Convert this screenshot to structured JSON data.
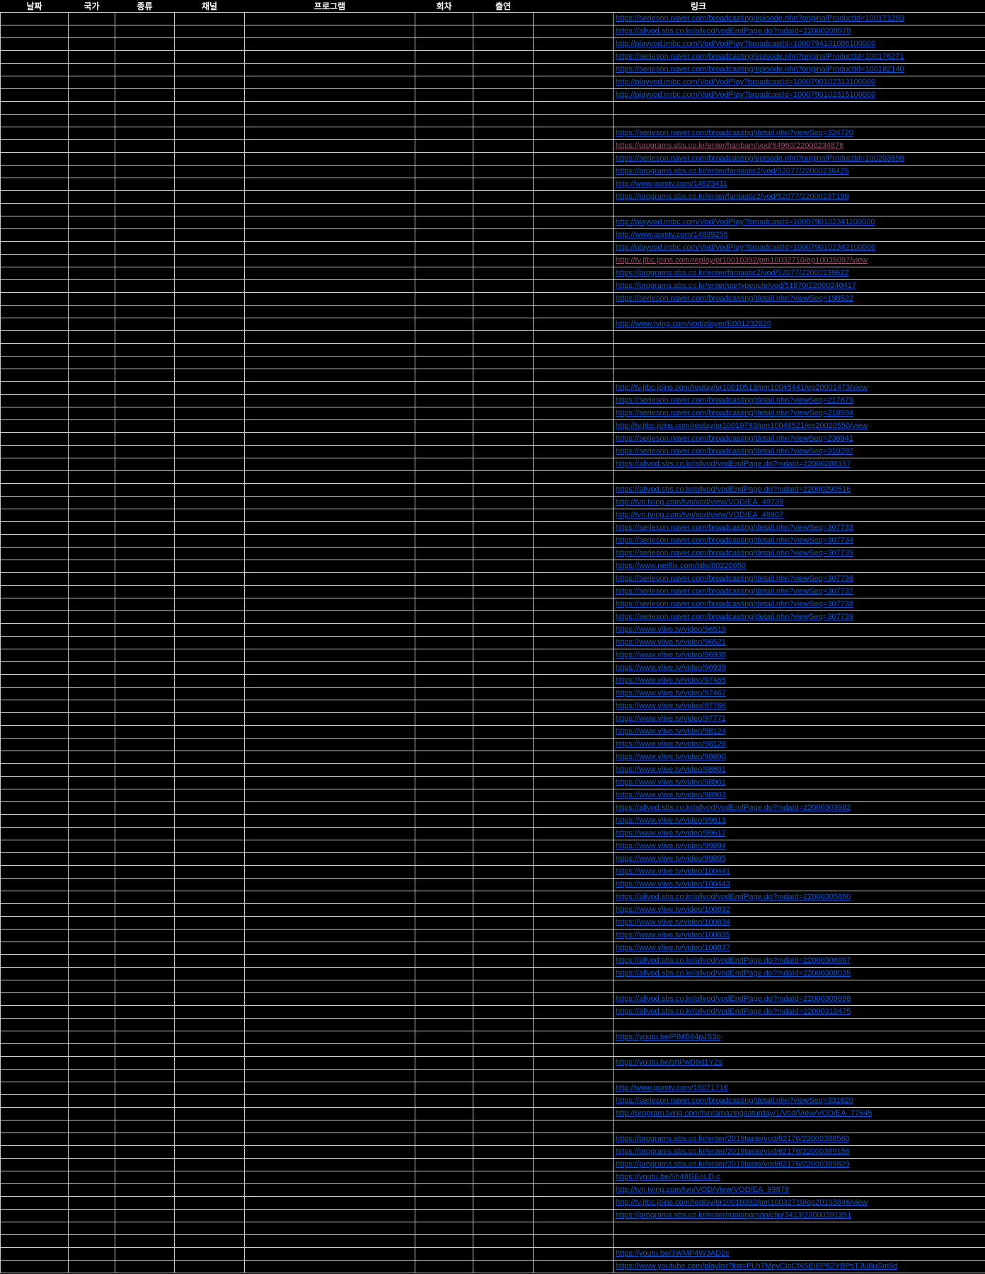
{
  "table": {
    "colors": {
      "background": "#000000",
      "grid_line": "#C9C9C9",
      "header_text": "#FFFFFF",
      "hyperlink": "#1155CC",
      "visited_hyperlink": "#954F72"
    },
    "columns": [
      {
        "key": "date",
        "label": "날짜"
      },
      {
        "key": "country",
        "label": "국가"
      },
      {
        "key": "type",
        "label": "종류"
      },
      {
        "key": "channel",
        "label": "채널"
      },
      {
        "key": "program",
        "label": "프로그램"
      },
      {
        "key": "episode",
        "label": "회차"
      },
      {
        "key": "cast",
        "label": "출연"
      },
      {
        "key": "spacer",
        "label": ""
      },
      {
        "key": "link",
        "label": "링크"
      }
    ],
    "rows": [
      {
        "link": "https://serieson.naver.com/broadcasting/episode.nhn?originalProductId=100171293"
      },
      {
        "link": "https://allvod.sbs.co.kr/allvod/vodEndPage.do?mdaId=22000209978"
      },
      {
        "link": "http://playvod.imbc.com/Vod/VodPlay?broadcastId=1000794101086100000"
      },
      {
        "link": "https://serieson.naver.com/broadcasting/episode.nhn?originalProductId=100176271"
      },
      {
        "link": "https://serieson.naver.com/broadcasting/episode.nhn?originalProductId=100182140"
      },
      {
        "link": "http://playvod.imbc.com/Vod/VodPlay?broadcastId=1000790102313100000"
      },
      {
        "link": "http://playvod.imbc.com/Vod/VodPlay?broadcastId=1000790102315100000"
      },
      {
        "link": ""
      },
      {
        "link": ""
      },
      {
        "link": "https://serieson.naver.com/broadcasting/detail.nhn?viewSeq=324720"
      },
      {
        "link": "https://programs.sbs.co.kr/enter/hanbam/vod/64960/22000234876",
        "visited": true
      },
      {
        "link": "https://serieson.naver.com/broadcasting/episode.nhn?originalProductId=100203698"
      },
      {
        "link": "https://programs.sbs.co.kr/enter/fantastic2/vod/52077/22000236425"
      },
      {
        "link": "http://www.gomtv.com/14823411"
      },
      {
        "link": "https://programs.sbs.co.kr/enter/fantastic2/vod/52077/22000237199"
      },
      {
        "link": ""
      },
      {
        "link": "http://playvod.imbc.com/Vod/VodPlay?broadcastId=1000790102341100000"
      },
      {
        "link": "http://www.gomtv.com/14839256"
      },
      {
        "link": "http://playvod.imbc.com/Vod/VodPlay?broadcastId=1000790102342100000"
      },
      {
        "link": "http://tv.jtbc.joins.com/replay/pr10010392/pm10032710/ep10035097/view",
        "visited": true
      },
      {
        "link": "https://programs.sbs.co.kr/enter/fantastic2/vod/52077/22000239622"
      },
      {
        "link": "https://programs.sbs.co.kr/enter/partypeople/vod/51870/22000240417"
      },
      {
        "link": "https://serieson.naver.com/broadcasting/detail.nhn?viewSeq=198522"
      },
      {
        "link": ""
      },
      {
        "link": "http://www.tving.com/vod/player/E001232820"
      },
      {
        "link": ""
      },
      {
        "link": ""
      },
      {
        "link": ""
      },
      {
        "link": ""
      },
      {
        "link": "http://tv.jtbc.joins.com/replay/pr10010513/pm10045441/ep20001473/view"
      },
      {
        "link": "https://serieson.naver.com/broadcasting/detail.nhn?viewSeq=217879"
      },
      {
        "link": "https://serieson.naver.com/broadcasting/detail.nhn?viewSeq=218594"
      },
      {
        "link": "http://tv.jtbc.joins.com/replay/pr10010793/pm10048521/ep20020550/view"
      },
      {
        "link": "https://serieson.naver.com/broadcasting/detail.nhn?viewSeq=236941"
      },
      {
        "link": "https://serieson.naver.com/broadcasting/detail.nhn?viewSeq=310297"
      },
      {
        "link": "https://allvod.sbs.co.kr/allvod/vodEndPage.do?mdaId=22000286157"
      },
      {
        "link": ""
      },
      {
        "link": "https://allvod.sbs.co.kr/allvod/vodEndPage.do?mdaId=22000290516"
      },
      {
        "link": "http://tvn.tving.com/tvn/vod/view/VOD/EA_49739"
      },
      {
        "link": "http://tvn.tving.com/tvn/vod/view/VOD/EA_49907"
      },
      {
        "link": "https://serieson.naver.com/broadcasting/detail.nhn?viewSeq=307733"
      },
      {
        "link": "https://serieson.naver.com/broadcasting/detail.nhn?viewSeq=307734"
      },
      {
        "link": "https://serieson.naver.com/broadcasting/detail.nhn?viewSeq=307735"
      },
      {
        "link": "https://www.netflix.com/title/80220650"
      },
      {
        "link": "https://serieson.naver.com/broadcasting/detail.nhn?viewSeq=307736"
      },
      {
        "link": "https://serieson.naver.com/broadcasting/detail.nhn?viewSeq=307737"
      },
      {
        "link": "https://serieson.naver.com/broadcasting/detail.nhn?viewSeq=307738"
      },
      {
        "link": "https://serieson.naver.com/broadcasting/detail.nhn?viewSeq=307739"
      },
      {
        "link": "https://www.vlive.tv/video/96519"
      },
      {
        "link": "https://www.vlive.tv/video/96521"
      },
      {
        "link": "https://www.vlive.tv/video/96938"
      },
      {
        "link": "https://www.vlive.tv/video/96939"
      },
      {
        "link": "https://www.vlive.tv/video/97465"
      },
      {
        "link": "https://www.vlive.tv/video/97467"
      },
      {
        "link": "https://www.vlive.tv/video/97766"
      },
      {
        "link": "https://www.vlive.tv/video/97771"
      },
      {
        "link": "https://www.vlive.tv/video/98124"
      },
      {
        "link": "https://www.vlive.tv/video/98126"
      },
      {
        "link": "https://www.vlive.tv/video/98690"
      },
      {
        "link": "https://www.vlive.tv/video/98691"
      },
      {
        "link": "https://www.vlive.tv/video/98901"
      },
      {
        "link": "https://www.vlive.tv/video/98903"
      },
      {
        "link": "https://allvod.sbs.co.kr/allvod/vodEndPage.do?mdaId=22000303982"
      },
      {
        "link": "https://www.vlive.tv/video/99613"
      },
      {
        "link": "https://www.vlive.tv/video/99617"
      },
      {
        "link": "https://www.vlive.tv/video/99894"
      },
      {
        "link": "https://www.vlive.tv/video/99895"
      },
      {
        "link": "https://www.vlive.tv/video/100441"
      },
      {
        "link": "https://www.vlive.tv/video/100443"
      },
      {
        "link": "https://allvod.sbs.co.kr/allvod/vodEndPage.do?mdaId=22000305880"
      },
      {
        "link": "https://www.vlive.tv/video/100832"
      },
      {
        "link": "https://www.vlive.tv/video/100834"
      },
      {
        "link": "https://www.vlive.tv/video/100835"
      },
      {
        "link": "https://www.vlive.tv/video/100837"
      },
      {
        "link": "https://allvod.sbs.co.kr/allvod/vodEndPage.do?mdaId=22000306997"
      },
      {
        "link": "https://allvod.sbs.co.kr/allvod/vodEndPage.do?mdaId=22000308035"
      },
      {
        "link": ""
      },
      {
        "link": "https://allvod.sbs.co.kr/allvod/vodEndPage.do?mdaId=22000309998"
      },
      {
        "link": "https://allvod.sbs.co.kr/allvod/vodEndPage.do?mdaId=22000310475"
      },
      {
        "link": ""
      },
      {
        "link": "https://youtu.be/PIMB64pJS3o"
      },
      {
        "link": ""
      },
      {
        "link": "https://youtu.be/shPwD9d1YZs"
      },
      {
        "link": ""
      },
      {
        "link": "http://www.gomtv.com/16071716"
      },
      {
        "link": "https://serieson.naver.com/broadcasting/detail.nhn?viewSeq=331620"
      },
      {
        "link": "http://program.tving.com/tvn/amazingsaturday/1/Vod/View/VOD/EA_77645"
      },
      {
        "link": ""
      },
      {
        "link": "https://programs.sbs.co.kr/enter/2019taste/vod/62176/22000388560"
      },
      {
        "link": "https://programs.sbs.co.kr/enter/2019taste/vod/62176/22000389156"
      },
      {
        "link": "https://programs.sbs.co.kr/enter/2019taste/vod/62176/22000389829"
      },
      {
        "link": "https://youtu.be/5h48GEoLD-c"
      },
      {
        "link": "http://tvn.tving.com/tvn/VOD/View/VOD/EA_99879"
      },
      {
        "link": "http://tv.jtbc.joins.com/replay/pr10010392/pm10032710/ep20103846/view"
      },
      {
        "link": "https://programs.sbs.co.kr/enter/runningman/clip/3413/22000391351"
      },
      {
        "link": ""
      },
      {
        "link": ""
      },
      {
        "link": "https://youtu.be/3WMP4W3AD2c"
      },
      {
        "link": "https://www.youtube.com/playlist?list=PLhTMeyCiaCf4SEiEP62YBPsTJU8uSm5d"
      }
    ]
  }
}
